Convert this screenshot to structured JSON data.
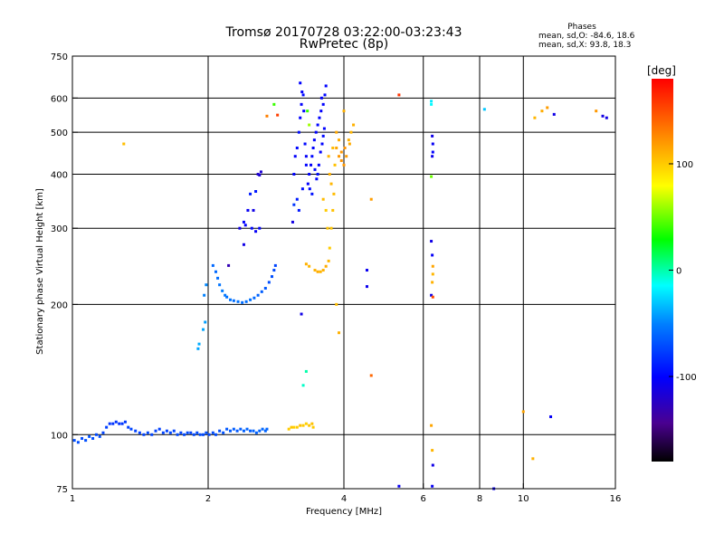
{
  "chart_data": {
    "type": "scatter",
    "title": "Tromsø 20170728 03:22:00-03:23:43",
    "subtitle": "RwPretec (8p)",
    "stats": {
      "heading": "Phases",
      "line1": "mean, sd,O: -84.6, 18.6",
      "line2": "mean, sd,X:  93.8, 18.3"
    },
    "xlabel": "Frequency [MHz]",
    "ylabel": "Stationary phase Virtual Height [km]",
    "x_scale": "log",
    "y_scale": "log",
    "xlim": [
      1,
      16
    ],
    "ylim": [
      75,
      750
    ],
    "x_ticks": [
      {
        "value": 1,
        "label": "1"
      },
      {
        "value": 2,
        "label": "2"
      },
      {
        "value": 4,
        "label": "4"
      },
      {
        "value": 6,
        "label": "6"
      },
      {
        "value": 8,
        "label": "8"
      },
      {
        "value": 10,
        "label": "10"
      },
      {
        "value": 16,
        "label": "16"
      }
    ],
    "x_gridlines": [
      2,
      4,
      6,
      8,
      10
    ],
    "y_ticks": [
      {
        "value": 75,
        "label": "75"
      },
      {
        "value": 100,
        "label": "100"
      },
      {
        "value": 200,
        "label": "200"
      },
      {
        "value": 300,
        "label": "300"
      },
      {
        "value": 400,
        "label": "400"
      },
      {
        "value": 500,
        "label": "500"
      },
      {
        "value": 600,
        "label": "600"
      },
      {
        "value": 750,
        "label": "750"
      }
    ],
    "y_gridlines": [
      100,
      200,
      300,
      400,
      500,
      600
    ],
    "colorbar": {
      "label": "[deg]",
      "range": [
        -180,
        180
      ],
      "ticks": [
        {
          "value": 100,
          "label": "100"
        },
        {
          "value": 0,
          "label": "0"
        },
        {
          "value": -100,
          "label": "-100"
        }
      ]
    },
    "points": [
      [
        1.01,
        97,
        -70
      ],
      [
        1.03,
        96,
        -70
      ],
      [
        1.05,
        98,
        -72
      ],
      [
        1.07,
        97,
        -70
      ],
      [
        1.09,
        99,
        -68
      ],
      [
        1.11,
        98,
        -70
      ],
      [
        1.13,
        100,
        -72
      ],
      [
        1.15,
        99,
        -70
      ],
      [
        1.17,
        101,
        -74
      ],
      [
        1.19,
        104,
        -76
      ],
      [
        1.21,
        106,
        -80
      ],
      [
        1.23,
        106,
        -82
      ],
      [
        1.25,
        107,
        -80
      ],
      [
        1.27,
        106,
        -82
      ],
      [
        1.29,
        106,
        -80
      ],
      [
        1.31,
        107,
        -78
      ],
      [
        1.33,
        104,
        -76
      ],
      [
        1.35,
        103,
        -74
      ],
      [
        1.38,
        102,
        -75
      ],
      [
        1.41,
        101,
        -76
      ],
      [
        1.44,
        100,
        -75
      ],
      [
        1.47,
        101,
        -73
      ],
      [
        1.5,
        100,
        -74
      ],
      [
        1.53,
        102,
        -75
      ],
      [
        1.56,
        103,
        -76
      ],
      [
        1.59,
        101,
        -74
      ],
      [
        1.62,
        102,
        -75
      ],
      [
        1.65,
        101,
        -73
      ],
      [
        1.68,
        102,
        -74
      ],
      [
        1.71,
        100,
        -72
      ],
      [
        1.74,
        101,
        -74
      ],
      [
        1.77,
        100,
        -73
      ],
      [
        1.8,
        101,
        -72
      ],
      [
        1.83,
        101,
        -74
      ],
      [
        1.86,
        100,
        -73
      ],
      [
        1.89,
        101,
        -72
      ],
      [
        1.92,
        100,
        -71
      ],
      [
        1.95,
        100,
        -72
      ],
      [
        1.98,
        101,
        -70
      ],
      [
        2.01,
        100,
        -72
      ],
      [
        2.05,
        101,
        -70
      ],
      [
        2.08,
        100,
        -71
      ],
      [
        2.12,
        102,
        -70
      ],
      [
        2.16,
        101,
        -68
      ],
      [
        2.2,
        103,
        -66
      ],
      [
        2.24,
        102,
        -65
      ],
      [
        2.28,
        103,
        -64
      ],
      [
        2.32,
        102,
        -66
      ],
      [
        2.36,
        103,
        -64
      ],
      [
        2.4,
        102,
        -63
      ],
      [
        2.44,
        103,
        -62
      ],
      [
        2.48,
        102,
        -64
      ],
      [
        2.52,
        102,
        -62
      ],
      [
        2.56,
        101,
        -63
      ],
      [
        2.6,
        102,
        -62
      ],
      [
        2.64,
        103,
        -60
      ],
      [
        2.68,
        102,
        -62
      ],
      [
        2.7,
        103,
        -61
      ],
      [
        3.02,
        103,
        100
      ],
      [
        3.06,
        104,
        102
      ],
      [
        3.1,
        104,
        98
      ],
      [
        3.15,
        104,
        100
      ],
      [
        3.2,
        105,
        104
      ],
      [
        3.25,
        105,
        100
      ],
      [
        3.3,
        106,
        98
      ],
      [
        3.35,
        105,
        102
      ],
      [
        3.4,
        106,
        104
      ],
      [
        3.42,
        104,
        100
      ],
      [
        1.9,
        158,
        -40
      ],
      [
        1.91,
        162,
        -38
      ],
      [
        1.95,
        175,
        -40
      ],
      [
        1.97,
        182,
        -42
      ],
      [
        1.96,
        210,
        -50
      ],
      [
        1.98,
        222,
        -48
      ],
      [
        2.05,
        246,
        -60
      ],
      [
        2.08,
        238,
        -60
      ],
      [
        2.1,
        230,
        -58
      ],
      [
        2.12,
        222,
        -55
      ],
      [
        2.15,
        215,
        -52
      ],
      [
        2.18,
        210,
        -54
      ],
      [
        2.2,
        208,
        -56
      ],
      [
        2.24,
        205,
        -55
      ],
      [
        2.28,
        204,
        -58
      ],
      [
        2.33,
        203,
        -56
      ],
      [
        2.38,
        202,
        -58
      ],
      [
        2.43,
        203,
        -57
      ],
      [
        2.48,
        205,
        -56
      ],
      [
        2.53,
        207,
        -60
      ],
      [
        2.58,
        210,
        -62
      ],
      [
        2.63,
        214,
        -64
      ],
      [
        2.68,
        218,
        -66
      ],
      [
        2.73,
        225,
        -70
      ],
      [
        2.77,
        232,
        -70
      ],
      [
        2.8,
        240,
        -72
      ],
      [
        2.82,
        246,
        -74
      ],
      [
        2.22,
        246,
        -130
      ],
      [
        2.35,
        300,
        -110
      ],
      [
        2.4,
        310,
        -100
      ],
      [
        2.42,
        305,
        -102
      ],
      [
        2.5,
        300,
        -98
      ],
      [
        2.45,
        330,
        -105
      ],
      [
        2.52,
        330,
        -110
      ],
      [
        2.48,
        360,
        -90
      ],
      [
        2.55,
        365,
        -92
      ],
      [
        2.58,
        400,
        -120
      ],
      [
        2.62,
        405,
        -118
      ],
      [
        2.6,
        398,
        -116
      ],
      [
        2.4,
        275,
        -110
      ],
      [
        2.55,
        295,
        -104
      ],
      [
        2.6,
        300,
        -100
      ],
      [
        3.1,
        400,
        -100
      ],
      [
        3.12,
        440,
        -102
      ],
      [
        3.15,
        460,
        -98
      ],
      [
        3.18,
        500,
        -96
      ],
      [
        3.2,
        540,
        -100
      ],
      [
        3.22,
        580,
        -102
      ],
      [
        3.25,
        610,
        -98
      ],
      [
        3.2,
        650,
        -100
      ],
      [
        3.23,
        620,
        -102
      ],
      [
        3.26,
        560,
        -100
      ],
      [
        3.28,
        470,
        -98
      ],
      [
        3.3,
        420,
        -100
      ],
      [
        3.33,
        380,
        -102
      ],
      [
        3.35,
        400,
        -100
      ],
      [
        3.38,
        420,
        -102
      ],
      [
        3.4,
        440,
        -98
      ],
      [
        3.42,
        460,
        -100
      ],
      [
        3.44,
        480,
        -102
      ],
      [
        3.47,
        500,
        -100
      ],
      [
        3.5,
        520,
        -98
      ],
      [
        3.53,
        540,
        -100
      ],
      [
        3.56,
        560,
        -102
      ],
      [
        3.6,
        580,
        -100
      ],
      [
        3.63,
        610,
        -98
      ],
      [
        3.65,
        640,
        -100
      ],
      [
        3.57,
        600,
        -102
      ],
      [
        3.45,
        410,
        -96
      ],
      [
        3.48,
        390,
        -98
      ],
      [
        3.52,
        420,
        -100
      ],
      [
        3.55,
        450,
        -102
      ],
      [
        3.58,
        470,
        -100
      ],
      [
        3.6,
        490,
        -98
      ],
      [
        3.62,
        510,
        -100
      ],
      [
        3.3,
        440,
        -104
      ],
      [
        3.36,
        370,
        -98
      ],
      [
        3.15,
        350,
        -90
      ],
      [
        3.18,
        330,
        -92
      ],
      [
        3.24,
        370,
        -96
      ],
      [
        3.4,
        360,
        -94
      ],
      [
        3.5,
        400,
        -96
      ],
      [
        3.22,
        190,
        -110
      ],
      [
        3.08,
        310,
        -112
      ],
      [
        3.1,
        340,
        -80
      ],
      [
        3.3,
        248,
        110
      ],
      [
        3.35,
        245,
        108
      ],
      [
        3.45,
        240,
        110
      ],
      [
        3.5,
        238,
        112
      ],
      [
        3.55,
        238,
        108
      ],
      [
        3.6,
        240,
        110
      ],
      [
        3.65,
        245,
        112
      ],
      [
        3.7,
        252,
        108
      ],
      [
        3.72,
        270,
        100
      ],
      [
        3.75,
        300,
        102
      ],
      [
        3.78,
        330,
        104
      ],
      [
        3.8,
        360,
        106
      ],
      [
        3.75,
        380,
        108
      ],
      [
        3.72,
        400,
        110
      ],
      [
        3.7,
        440,
        108
      ],
      [
        3.78,
        460,
        106
      ],
      [
        3.82,
        420,
        104
      ],
      [
        3.65,
        330,
        100
      ],
      [
        3.68,
        300,
        102
      ],
      [
        3.6,
        350,
        106
      ],
      [
        3.9,
        440,
        120
      ],
      [
        3.95,
        430,
        122
      ],
      [
        4.0,
        420,
        120
      ],
      [
        4.05,
        440,
        118
      ],
      [
        3.95,
        450,
        120
      ],
      [
        4.02,
        460,
        122
      ],
      [
        4.1,
        480,
        110
      ],
      [
        4.15,
        500,
        108
      ],
      [
        4.2,
        520,
        110
      ],
      [
        4.12,
        470,
        112
      ],
      [
        3.85,
        460,
        115
      ],
      [
        3.9,
        480,
        112
      ],
      [
        3.85,
        500,
        114
      ],
      [
        4.0,
        560,
        110
      ],
      [
        3.85,
        200,
        105
      ],
      [
        3.9,
        172,
        110
      ],
      [
        3.25,
        130,
        -5
      ],
      [
        3.3,
        140,
        0
      ],
      [
        4.5,
        220,
        -108
      ],
      [
        4.5,
        240,
        -106
      ],
      [
        4.6,
        350,
        118
      ],
      [
        4.6,
        137,
        140
      ],
      [
        5.3,
        610,
        160
      ],
      [
        6.25,
        590,
        -20
      ],
      [
        6.25,
        580,
        -15
      ],
      [
        6.28,
        490,
        -110
      ],
      [
        6.3,
        470,
        -105
      ],
      [
        6.3,
        450,
        -100
      ],
      [
        6.28,
        440,
        -108
      ],
      [
        6.25,
        395,
        50
      ],
      [
        6.25,
        280,
        -110
      ],
      [
        6.28,
        260,
        -104
      ],
      [
        6.3,
        245,
        115
      ],
      [
        6.3,
        235,
        108
      ],
      [
        6.28,
        225,
        110
      ],
      [
        6.25,
        210,
        -110
      ],
      [
        6.3,
        208,
        150
      ],
      [
        6.25,
        105,
        115
      ],
      [
        6.28,
        92,
        108
      ],
      [
        6.3,
        85,
        -110
      ],
      [
        6.28,
        76,
        -105
      ],
      [
        5.3,
        76,
        -106
      ],
      [
        8.2,
        565,
        -30
      ],
      [
        8.6,
        75,
        -106
      ],
      [
        10.0,
        113,
        115
      ],
      [
        10.6,
        540,
        108
      ],
      [
        11.0,
        560,
        112
      ],
      [
        11.3,
        570,
        118
      ],
      [
        11.7,
        550,
        -110
      ],
      [
        11.5,
        110,
        -104
      ],
      [
        10.5,
        88,
        110
      ],
      [
        14.5,
        560,
        120
      ],
      [
        15.0,
        545,
        -112
      ],
      [
        15.3,
        540,
        -110
      ],
      [
        1.3,
        470,
        105
      ],
      [
        2.7,
        545,
        130
      ],
      [
        2.85,
        548,
        155
      ],
      [
        2.8,
        580,
        40
      ],
      [
        3.32,
        560,
        40
      ],
      [
        3.35,
        520,
        60
      ]
    ]
  }
}
